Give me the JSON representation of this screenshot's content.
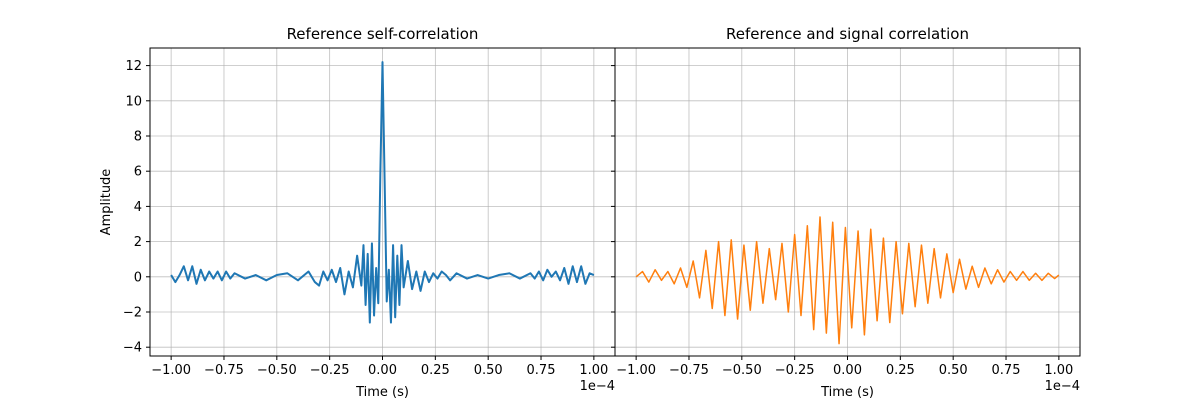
{
  "chart_data": [
    {
      "type": "line",
      "title": "Reference self-correlation",
      "xlabel": "Time (s)",
      "ylabel": "Amplitude",
      "x_offset_label": "1e−4",
      "xlim": [
        -1.1,
        1.1
      ],
      "ylim": [
        -4.5,
        13.0
      ],
      "xticks": [
        -1.0,
        -0.75,
        -0.5,
        -0.25,
        0.0,
        0.25,
        0.5,
        0.75,
        1.0
      ],
      "xtick_labels": [
        "−1.00",
        "−0.75",
        "−0.50",
        "−0.25",
        "0.00",
        "0.25",
        "0.50",
        "0.75",
        "1.00"
      ],
      "yticks": [
        -4,
        -2,
        0,
        2,
        4,
        6,
        8,
        10,
        12
      ],
      "ytick_labels": [
        "−4",
        "−2",
        "0",
        "2",
        "4",
        "6",
        "8",
        "10",
        "12"
      ],
      "grid": true,
      "color": "#1f77b4",
      "series": [
        {
          "x": [
            -1.0,
            -0.98,
            -0.96,
            -0.94,
            -0.92,
            -0.9,
            -0.88,
            -0.86,
            -0.84,
            -0.82,
            -0.8,
            -0.78,
            -0.76,
            -0.74,
            -0.72,
            -0.7,
            -0.65,
            -0.6,
            -0.55,
            -0.5,
            -0.45,
            -0.4,
            -0.35,
            -0.32,
            -0.3,
            -0.28,
            -0.26,
            -0.24,
            -0.22,
            -0.2,
            -0.18,
            -0.16,
            -0.14,
            -0.12,
            -0.1,
            -0.09,
            -0.08,
            -0.07,
            -0.06,
            -0.05,
            -0.04,
            -0.03,
            -0.02,
            -0.01,
            0.0,
            0.01,
            0.02,
            0.03,
            0.04,
            0.05,
            0.06,
            0.07,
            0.08,
            0.09,
            0.1,
            0.12,
            0.14,
            0.16,
            0.18,
            0.2,
            0.22,
            0.24,
            0.26,
            0.28,
            0.3,
            0.32,
            0.35,
            0.4,
            0.45,
            0.5,
            0.55,
            0.6,
            0.65,
            0.7,
            0.72,
            0.74,
            0.76,
            0.78,
            0.8,
            0.82,
            0.84,
            0.86,
            0.88,
            0.9,
            0.92,
            0.94,
            0.96,
            0.98,
            1.0
          ],
          "y": [
            0.1,
            -0.3,
            0.1,
            0.6,
            -0.2,
            0.6,
            -0.4,
            0.4,
            -0.2,
            0.3,
            -0.1,
            0.3,
            -0.2,
            0.3,
            -0.1,
            0.2,
            -0.1,
            0.1,
            -0.2,
            0.1,
            0.2,
            -0.2,
            0.3,
            -0.3,
            -0.5,
            0.3,
            -0.2,
            0.4,
            -0.3,
            0.5,
            -1.0,
            0.3,
            -0.6,
            1.2,
            -0.5,
            1.8,
            -1.6,
            1.3,
            -2.6,
            1.9,
            -2.2,
            0.5,
            -1.5,
            6.0,
            12.2,
            5.5,
            -1.4,
            0.4,
            -2.6,
            1.8,
            -2.3,
            1.2,
            -1.6,
            1.8,
            -0.6,
            0.9,
            -0.7,
            0.3,
            -0.8,
            0.3,
            -0.3,
            0.2,
            -0.1,
            0.3,
            0.1,
            -0.2,
            0.2,
            -0.1,
            0.1,
            -0.1,
            0.1,
            0.2,
            -0.1,
            0.2,
            -0.1,
            0.3,
            -0.2,
            0.4,
            0.0,
            0.3,
            -0.2,
            0.5,
            -0.4,
            0.6,
            -0.3,
            0.6,
            -0.4,
            0.2,
            0.1
          ]
        }
      ]
    },
    {
      "type": "line",
      "title": "Reference and signal correlation",
      "xlabel": "Time (s)",
      "ylabel": "",
      "x_offset_label": "1e−4",
      "xlim": [
        -1.1,
        1.1
      ],
      "ylim": [
        -4.5,
        13.0
      ],
      "xticks": [
        -1.0,
        -0.75,
        -0.5,
        -0.25,
        0.0,
        0.25,
        0.5,
        0.75,
        1.0
      ],
      "xtick_labels": [
        "−1.00",
        "−0.75",
        "−0.50",
        "−0.25",
        "0.00",
        "0.25",
        "0.50",
        "0.75",
        "1.00"
      ],
      "yticks": [
        -4,
        -2,
        0,
        2,
        4,
        6,
        8,
        10,
        12
      ],
      "grid": true,
      "color": "#ff7f0e",
      "series": [
        {
          "x": [
            -1.0,
            -0.97,
            -0.94,
            -0.91,
            -0.88,
            -0.85,
            -0.82,
            -0.79,
            -0.76,
            -0.73,
            -0.7,
            -0.67,
            -0.64,
            -0.61,
            -0.58,
            -0.55,
            -0.52,
            -0.49,
            -0.46,
            -0.43,
            -0.4,
            -0.37,
            -0.34,
            -0.31,
            -0.28,
            -0.25,
            -0.22,
            -0.19,
            -0.16,
            -0.13,
            -0.1,
            -0.07,
            -0.04,
            -0.01,
            0.02,
            0.05,
            0.08,
            0.11,
            0.14,
            0.17,
            0.2,
            0.23,
            0.26,
            0.29,
            0.32,
            0.35,
            0.38,
            0.41,
            0.44,
            0.47,
            0.5,
            0.53,
            0.56,
            0.59,
            0.62,
            0.65,
            0.68,
            0.71,
            0.74,
            0.77,
            0.8,
            0.83,
            0.86,
            0.89,
            0.92,
            0.95,
            0.98,
            1.0
          ],
          "y": [
            0.0,
            0.3,
            -0.3,
            0.4,
            -0.2,
            0.3,
            -0.4,
            0.5,
            -0.6,
            0.9,
            -1.2,
            1.5,
            -1.8,
            2.0,
            -2.2,
            2.1,
            -2.4,
            1.8,
            -1.9,
            2.0,
            -1.5,
            1.6,
            -1.3,
            1.9,
            -2.0,
            2.4,
            -2.2,
            2.9,
            -3.0,
            3.4,
            -3.2,
            3.1,
            -3.8,
            2.8,
            -2.9,
            2.6,
            -3.3,
            2.7,
            -2.5,
            2.2,
            -2.6,
            2.0,
            -2.1,
            1.9,
            -1.7,
            1.8,
            -1.5,
            1.6,
            -1.2,
            1.3,
            -0.9,
            1.0,
            -0.7,
            0.6,
            -0.6,
            0.5,
            -0.4,
            0.4,
            -0.3,
            0.3,
            -0.2,
            0.3,
            -0.2,
            0.2,
            -0.2,
            0.2,
            -0.1,
            0.1
          ]
        }
      ]
    }
  ]
}
